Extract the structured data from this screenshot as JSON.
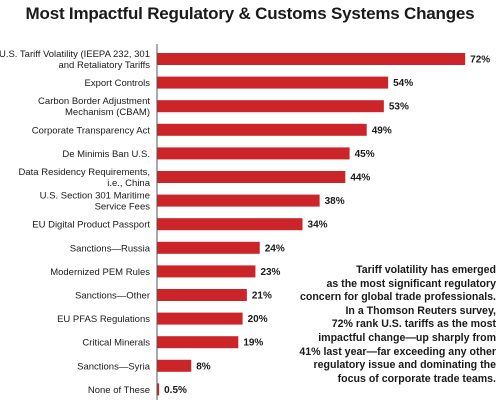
{
  "chart_data": {
    "type": "bar",
    "orientation": "horizontal",
    "title": "Most Impactful Regulatory & Customs Systems Changes",
    "bar_color": "#cc2529",
    "categories": [
      [
        "U.S. Tariff Volatility (IEEPA 232, 301",
        "and Retaliatory Tariffs"
      ],
      [
        "Export Controls"
      ],
      [
        "Carbon Border Adjustment",
        "Mechanism (CBAM)"
      ],
      [
        "Corporate Transparency Act"
      ],
      [
        "De Minimis Ban U.S."
      ],
      [
        "Data Residency Requirements,",
        "i.e., China"
      ],
      [
        "U.S. Section 301 Maritime",
        "Service Fees"
      ],
      [
        "EU Digital Product Passport"
      ],
      [
        "Sanctions—Russia"
      ],
      [
        "Modernized PEM Rules"
      ],
      [
        "Sanctions—Other"
      ],
      [
        "EU PFAS Regulations"
      ],
      [
        "Critical Minerals"
      ],
      [
        "Sanctions—Syria"
      ],
      [
        "None of These"
      ]
    ],
    "values": [
      72,
      54,
      53,
      49,
      45,
      44,
      38,
      34,
      24,
      23,
      21,
      20,
      19,
      8,
      0.5
    ],
    "value_labels": [
      "72%",
      "54%",
      "53%",
      "49%",
      "45%",
      "44%",
      "38%",
      "34%",
      "24%",
      "23%",
      "21%",
      "20%",
      "19%",
      "8%",
      "0.5%"
    ]
  },
  "annotation": {
    "lines": [
      "Tariff volatility has emerged",
      "as the most significant regulatory",
      "concern for global trade professionals.",
      "In a Thomson Reuters survey,",
      "72% rank U.S. tariffs as the most",
      "impactful change—up sharply from",
      "41% last year—far exceeding any other",
      "regulatory issue and dominating the",
      "focus of corporate trade teams."
    ]
  }
}
